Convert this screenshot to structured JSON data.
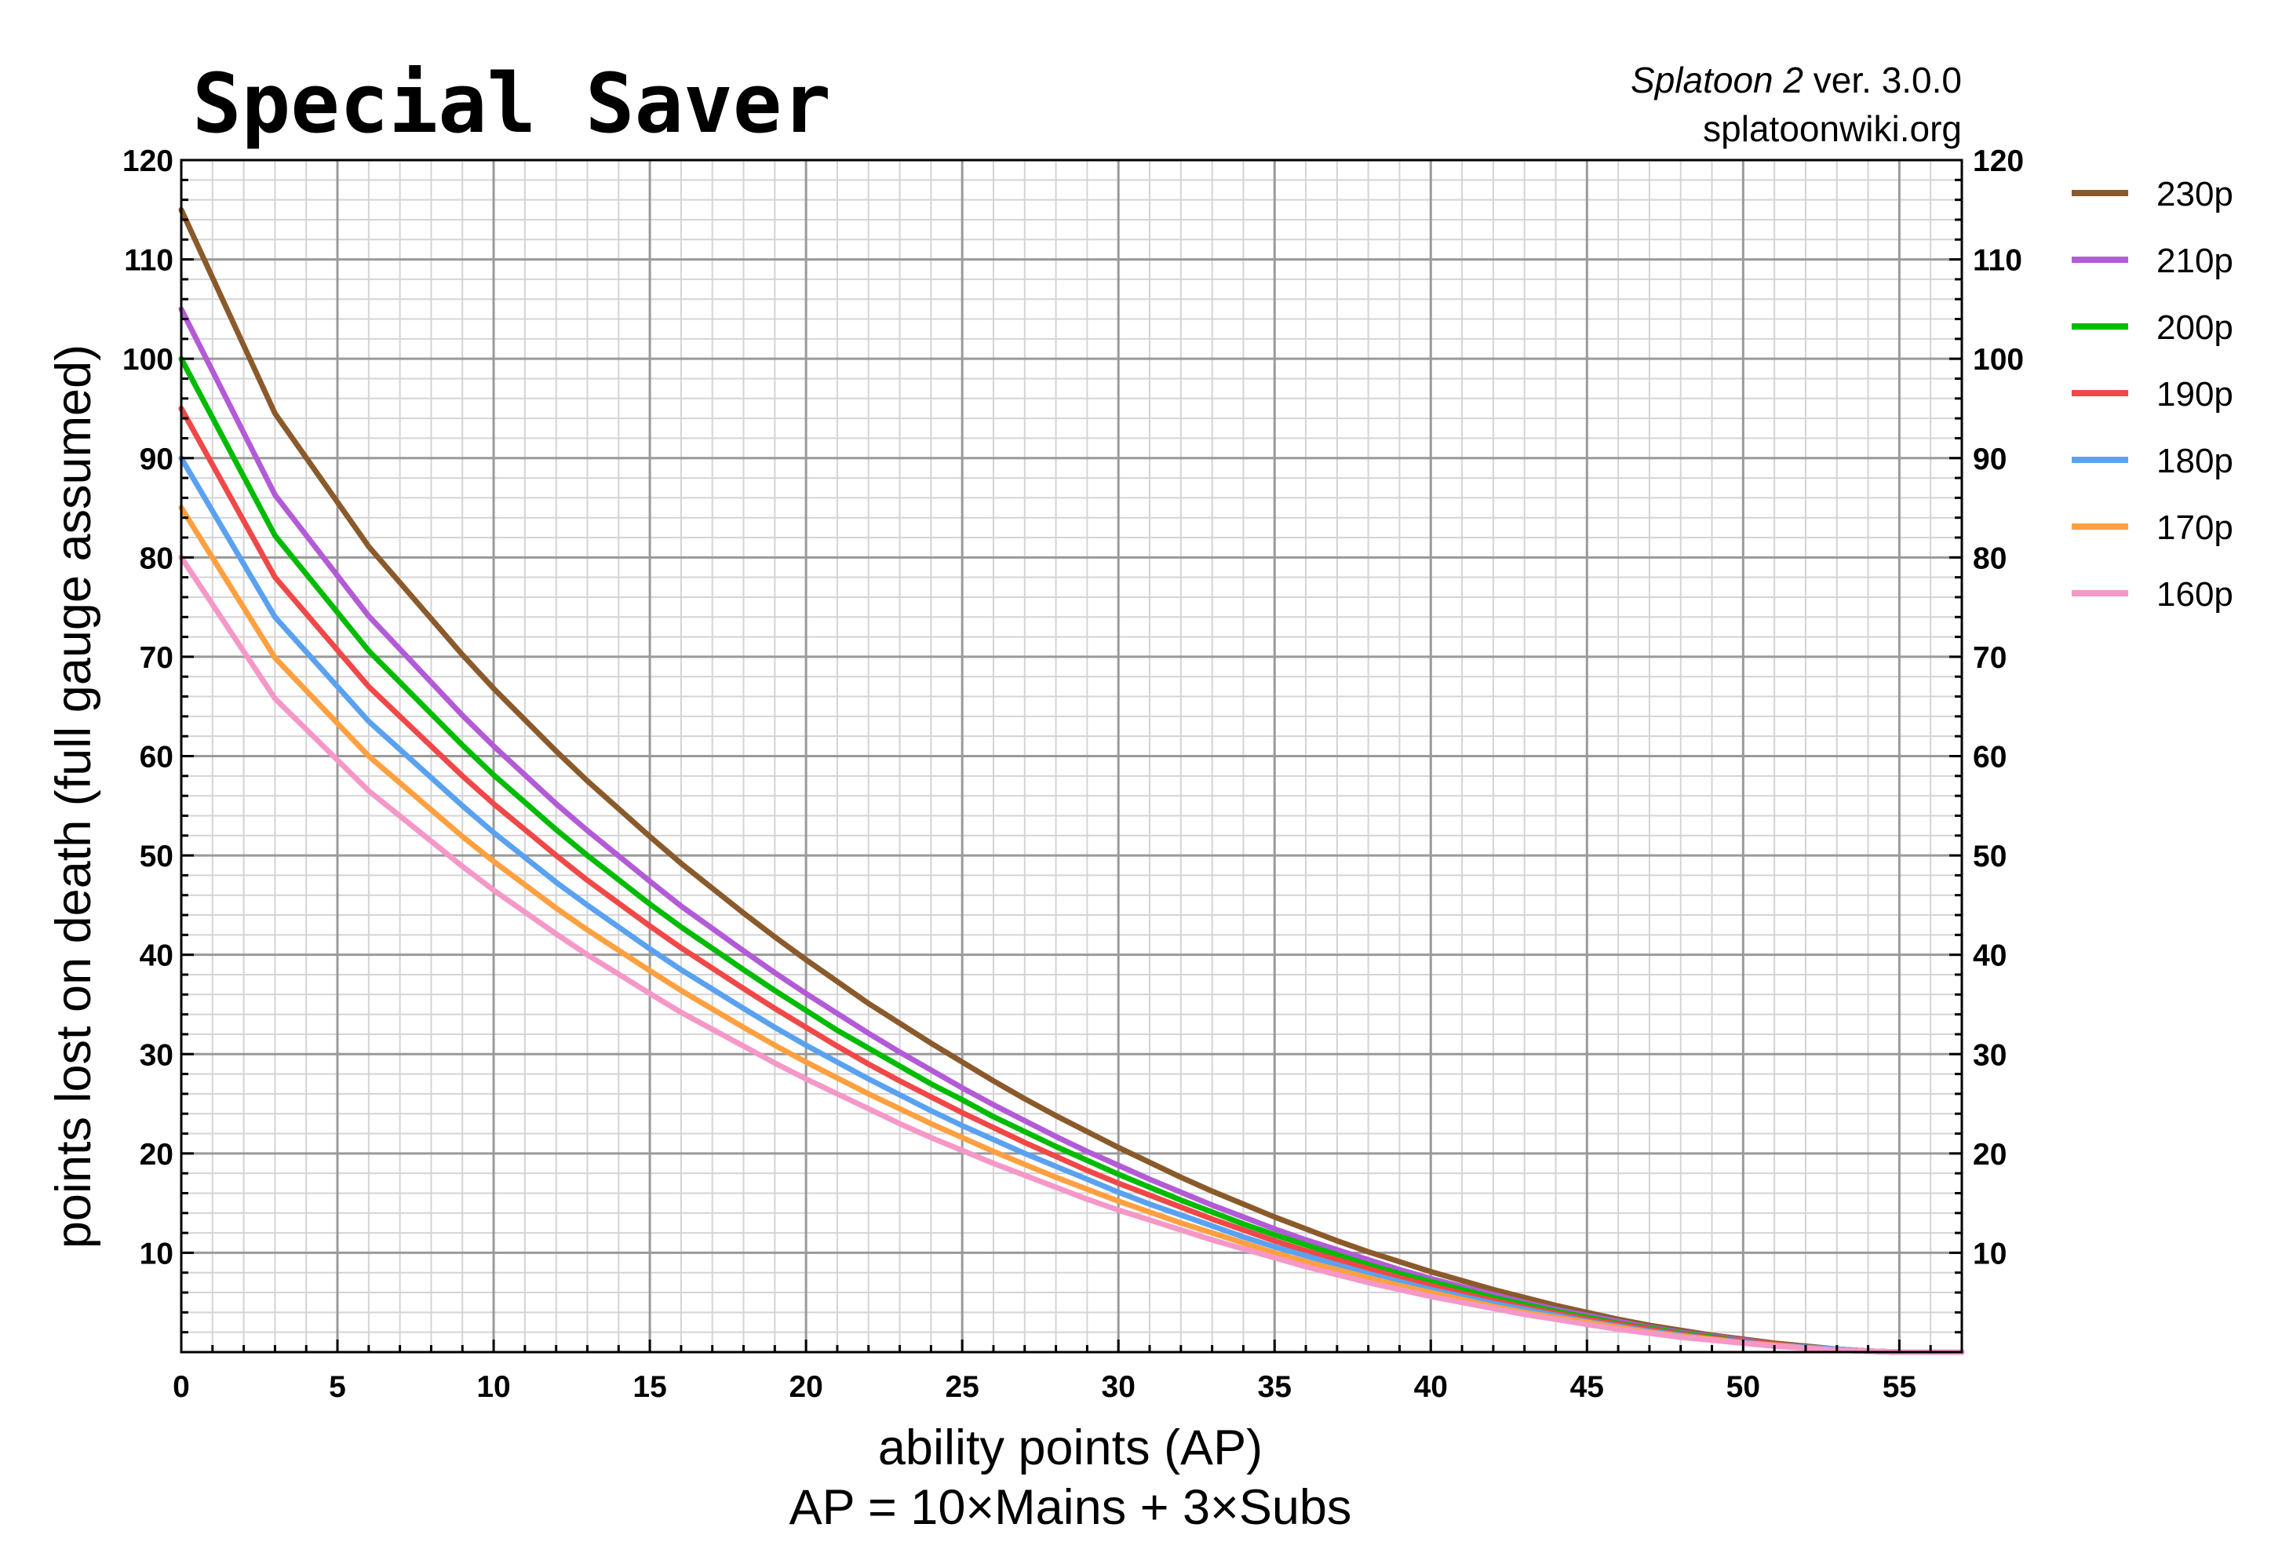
{
  "chart_data": {
    "type": "line",
    "title": "Special Saver",
    "credit_game": "Splatoon 2",
    "credit_version": " ver. 3.0.0",
    "credit_site": "splatoonwiki.org",
    "xlabel": "ability points (AP)",
    "xlabel_note": "AP = 10×Mains + 3×Subs",
    "ylabel": "points lost on death (full gauge assumed)",
    "xlim": [
      0,
      57
    ],
    "ylim": [
      0,
      120
    ],
    "x_ticks": [
      0,
      5,
      10,
      15,
      20,
      25,
      30,
      35,
      40,
      45,
      50,
      55
    ],
    "y_ticks": [
      10,
      20,
      30,
      40,
      50,
      60,
      70,
      80,
      90,
      100,
      110,
      120
    ],
    "grid": true,
    "legend_position": "right",
    "x": [
      0,
      3,
      6,
      9,
      10,
      12,
      13,
      15,
      16,
      18,
      19,
      20,
      21,
      22,
      23,
      24,
      25,
      26,
      27,
      28,
      29,
      30,
      31,
      32,
      33,
      34,
      35,
      36,
      37,
      38,
      39,
      40,
      41,
      42,
      43,
      44,
      45,
      46,
      47,
      48,
      49,
      50,
      51,
      52,
      53,
      54,
      55,
      56,
      57
    ],
    "series": [
      {
        "name": "230p",
        "color": "#8B5A2B",
        "values": [
          115.0,
          94.5,
          81.1,
          70.2,
          66.8,
          60.5,
          57.5,
          51.9,
          49.2,
          44.2,
          41.8,
          39.5,
          37.3,
          35.1,
          33.1,
          31.1,
          29.2,
          27.3,
          25.5,
          23.8,
          22.2,
          20.6,
          19.1,
          17.6,
          16.2,
          14.9,
          13.6,
          12.4,
          11.2,
          10.1,
          9.1,
          8.1,
          7.2,
          6.3,
          5.5,
          4.7,
          4.0,
          3.3,
          2.7,
          2.2,
          1.7,
          1.3,
          0.9,
          0.6,
          0.3,
          0.1,
          0.0,
          0.0,
          0.0
        ]
      },
      {
        "name": "210p",
        "color": "#B35BD6",
        "values": [
          105.0,
          86.3,
          74.1,
          64.1,
          61.0,
          55.2,
          52.5,
          47.4,
          44.9,
          40.4,
          38.2,
          36.1,
          34.1,
          32.1,
          30.2,
          28.4,
          26.6,
          24.9,
          23.3,
          21.7,
          20.2,
          18.8,
          17.4,
          16.1,
          14.8,
          13.6,
          12.4,
          11.3,
          10.3,
          9.3,
          8.3,
          7.4,
          6.6,
          5.8,
          5.0,
          4.3,
          3.7,
          3.1,
          2.5,
          2.0,
          1.6,
          1.2,
          0.8,
          0.5,
          0.3,
          0.1,
          0.0,
          0.0,
          0.0
        ]
      },
      {
        "name": "200p",
        "color": "#00BB00",
        "values": [
          100.0,
          82.2,
          70.6,
          61.1,
          58.1,
          52.6,
          50.0,
          45.1,
          42.8,
          38.5,
          36.4,
          34.4,
          32.4,
          30.6,
          28.8,
          27.0,
          25.4,
          23.7,
          22.2,
          20.7,
          19.3,
          17.9,
          16.6,
          15.3,
          14.1,
          12.9,
          11.8,
          10.8,
          9.8,
          8.8,
          7.9,
          7.1,
          6.3,
          5.5,
          4.8,
          4.1,
          3.5,
          2.9,
          2.4,
          1.9,
          1.5,
          1.1,
          0.8,
          0.5,
          0.3,
          0.1,
          0.0,
          0.0,
          0.0
        ]
      },
      {
        "name": "190p",
        "color": "#F04848",
        "values": [
          95.0,
          78.0,
          67.0,
          58.0,
          55.2,
          50.0,
          47.5,
          42.9,
          40.7,
          36.6,
          34.6,
          32.7,
          30.8,
          29.0,
          27.3,
          25.7,
          24.1,
          22.6,
          21.1,
          19.7,
          18.3,
          17.0,
          15.8,
          14.6,
          13.4,
          12.3,
          11.2,
          10.2,
          9.3,
          8.4,
          7.5,
          6.7,
          5.9,
          5.2,
          4.5,
          3.9,
          3.3,
          2.8,
          2.3,
          1.8,
          1.4,
          1.1,
          0.8,
          0.5,
          0.3,
          0.1,
          0.0,
          0.0,
          0.0
        ]
      },
      {
        "name": "180p",
        "color": "#5AA2F0",
        "values": [
          90.0,
          74.0,
          63.5,
          55.0,
          52.3,
          47.3,
          45.0,
          40.6,
          38.5,
          34.6,
          32.7,
          30.9,
          29.2,
          27.5,
          25.9,
          24.3,
          22.8,
          21.4,
          20.0,
          18.7,
          17.4,
          16.1,
          14.9,
          13.8,
          12.7,
          11.6,
          10.6,
          9.7,
          8.8,
          7.9,
          7.1,
          6.3,
          5.6,
          4.9,
          4.3,
          3.7,
          3.1,
          2.6,
          2.1,
          1.7,
          1.3,
          1.0,
          0.7,
          0.5,
          0.3,
          0.1,
          0.0,
          0.0,
          0.0
        ]
      },
      {
        "name": "170p",
        "color": "#FFA040",
        "values": [
          85.0,
          69.9,
          60.0,
          51.9,
          49.4,
          44.7,
          42.5,
          38.4,
          36.4,
          32.7,
          30.9,
          29.2,
          27.6,
          26.0,
          24.5,
          23.0,
          21.6,
          20.2,
          18.9,
          17.6,
          16.4,
          15.2,
          14.1,
          13.0,
          12.0,
          11.0,
          10.0,
          9.1,
          8.3,
          7.5,
          6.7,
          6.0,
          5.3,
          4.6,
          4.0,
          3.5,
          3.0,
          2.5,
          2.0,
          1.6,
          1.3,
          0.9,
          0.7,
          0.4,
          0.2,
          0.1,
          0.0,
          0.0,
          0.0
        ]
      },
      {
        "name": "160p",
        "color": "#F598C8",
        "values": [
          80.0,
          65.8,
          56.5,
          48.9,
          46.5,
          42.1,
          40.0,
          36.1,
          34.2,
          30.8,
          29.1,
          27.5,
          26.0,
          24.5,
          23.0,
          21.6,
          20.3,
          19.0,
          17.8,
          16.6,
          15.4,
          14.3,
          13.3,
          12.3,
          11.3,
          10.4,
          9.5,
          8.6,
          7.8,
          7.0,
          6.3,
          5.6,
          5.0,
          4.4,
          3.8,
          3.3,
          2.8,
          2.3,
          1.9,
          1.5,
          1.2,
          0.9,
          0.6,
          0.4,
          0.2,
          0.1,
          0.0,
          0.0,
          0.0
        ]
      }
    ]
  }
}
